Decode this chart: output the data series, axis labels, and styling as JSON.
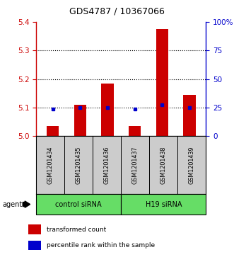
{
  "title": "GDS4787 / 10367066",
  "samples": [
    "GSM1201434",
    "GSM1201435",
    "GSM1201436",
    "GSM1201437",
    "GSM1201438",
    "GSM1201439"
  ],
  "red_values": [
    5.035,
    5.11,
    5.185,
    5.035,
    5.375,
    5.145
  ],
  "blue_values": [
    5.095,
    5.1,
    5.1,
    5.095,
    5.11,
    5.1
  ],
  "ylim_left": [
    5.0,
    5.4
  ],
  "ylim_right": [
    0,
    100
  ],
  "yticks_left": [
    5.0,
    5.1,
    5.2,
    5.3,
    5.4
  ],
  "yticks_right": [
    0,
    25,
    50,
    75,
    100
  ],
  "ytick_labels_right": [
    "0",
    "25",
    "50",
    "75",
    "100%"
  ],
  "bar_color": "#CC0000",
  "dot_color": "#0000CC",
  "bar_width": 0.45,
  "background_color": "#FFFFFF",
  "plot_bg_color": "#CCCCCC",
  "group_green": "#66DD66",
  "agent_label": "agent",
  "legend_red": "transformed count",
  "legend_blue": "percentile rank within the sample",
  "ctrl_label": "control siRNA",
  "h19_label": "H19 siRNA",
  "grid_ticks": [
    5.1,
    5.2,
    5.3
  ]
}
